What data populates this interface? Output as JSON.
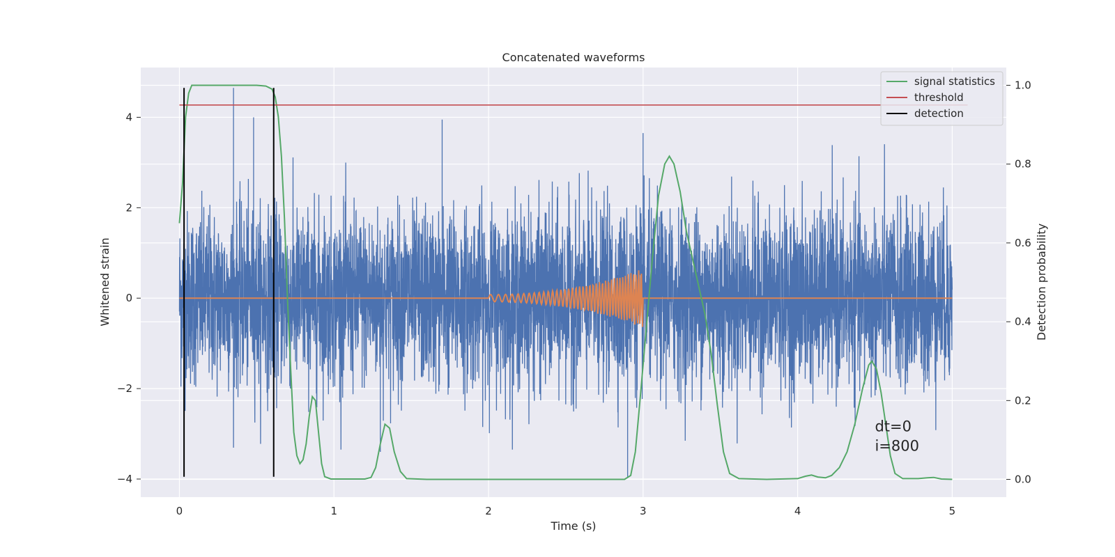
{
  "chart_data": {
    "type": "line",
    "title": "Concatenated waveforms",
    "xlabel": "Time (s)",
    "ylabel": "Whitened strain",
    "y2label": "Detection probability",
    "xlim": [
      -0.25,
      5.35
    ],
    "ylim": [
      -4.4,
      5.1
    ],
    "y2lim": [
      -0.045,
      1.045
    ],
    "xticks": [
      0,
      1,
      2,
      3,
      4,
      5
    ],
    "yticks": [
      -4,
      -2,
      0,
      2,
      4
    ],
    "yticklabels": [
      "−4",
      "−2",
      "0",
      "2",
      "4"
    ],
    "y2ticks": [
      0.0,
      0.2,
      0.4,
      0.6,
      0.8,
      1.0
    ],
    "y2ticklabels": [
      "0.0",
      "0.2",
      "0.4",
      "0.6",
      "0.8",
      "1.0"
    ],
    "grid": true,
    "legend_position": "top-right",
    "legend": [
      "signal statistics",
      "threshold",
      "detection"
    ],
    "colors": {
      "strain": "#4c72b0",
      "template": "#dd8452",
      "signal_statistics": "#55a868",
      "threshold": "#c44e52",
      "detection": "#000000",
      "background": "#eaeaf2",
      "grid": "#ffffff"
    },
    "strain": {
      "x_range": [
        0,
        5
      ],
      "amplitude_range": [
        -3.95,
        4.65
      ],
      "peak_points": [
        {
          "x": 0.35,
          "y": 4.65
        },
        {
          "x": 0.48,
          "y": 4.0
        },
        {
          "x": 1.7,
          "y": 3.95
        },
        {
          "x": 3.0,
          "y": 3.65
        },
        {
          "x": 2.9,
          "y": -3.95
        },
        {
          "x": 1.3,
          "y": -3.4
        }
      ]
    },
    "template": {
      "x_start": 2.0,
      "x_end": 3.0,
      "max_amplitude": 0.65
    },
    "series": [
      {
        "name": "signal statistics",
        "axis": "right",
        "points": [
          [
            0.0,
            0.65
          ],
          [
            0.02,
            0.75
          ],
          [
            0.04,
            0.92
          ],
          [
            0.06,
            0.98
          ],
          [
            0.08,
            1.0
          ],
          [
            0.1,
            1.0
          ],
          [
            0.3,
            1.0
          ],
          [
            0.5,
            1.0
          ],
          [
            0.56,
            0.998
          ],
          [
            0.6,
            0.99
          ],
          [
            0.62,
            0.97
          ],
          [
            0.64,
            0.92
          ],
          [
            0.66,
            0.82
          ],
          [
            0.68,
            0.66
          ],
          [
            0.7,
            0.45
          ],
          [
            0.72,
            0.28
          ],
          [
            0.74,
            0.12
          ],
          [
            0.76,
            0.06
          ],
          [
            0.78,
            0.04
          ],
          [
            0.8,
            0.05
          ],
          [
            0.82,
            0.09
          ],
          [
            0.84,
            0.16
          ],
          [
            0.86,
            0.21
          ],
          [
            0.88,
            0.2
          ],
          [
            0.9,
            0.12
          ],
          [
            0.92,
            0.04
          ],
          [
            0.94,
            0.007
          ],
          [
            0.98,
            0.001
          ],
          [
            1.2,
            0.001
          ],
          [
            1.24,
            0.005
          ],
          [
            1.27,
            0.03
          ],
          [
            1.3,
            0.09
          ],
          [
            1.33,
            0.14
          ],
          [
            1.36,
            0.13
          ],
          [
            1.39,
            0.07
          ],
          [
            1.43,
            0.02
          ],
          [
            1.47,
            0.002
          ],
          [
            1.6,
            0.0
          ],
          [
            2.0,
            0.0
          ],
          [
            2.5,
            0.0
          ],
          [
            2.88,
            0.0
          ],
          [
            2.92,
            0.01
          ],
          [
            2.95,
            0.07
          ],
          [
            2.98,
            0.2
          ],
          [
            3.02,
            0.38
          ],
          [
            3.06,
            0.56
          ],
          [
            3.1,
            0.72
          ],
          [
            3.14,
            0.8
          ],
          [
            3.17,
            0.82
          ],
          [
            3.2,
            0.8
          ],
          [
            3.24,
            0.73
          ],
          [
            3.28,
            0.63
          ],
          [
            3.32,
            0.56
          ],
          [
            3.36,
            0.49
          ],
          [
            3.4,
            0.42
          ],
          [
            3.44,
            0.32
          ],
          [
            3.48,
            0.19
          ],
          [
            3.52,
            0.07
          ],
          [
            3.56,
            0.015
          ],
          [
            3.62,
            0.002
          ],
          [
            3.8,
            0.0
          ],
          [
            4.0,
            0.002
          ],
          [
            4.05,
            0.008
          ],
          [
            4.09,
            0.011
          ],
          [
            4.13,
            0.006
          ],
          [
            4.18,
            0.004
          ],
          [
            4.22,
            0.01
          ],
          [
            4.27,
            0.03
          ],
          [
            4.32,
            0.07
          ],
          [
            4.37,
            0.14
          ],
          [
            4.42,
            0.23
          ],
          [
            4.46,
            0.29
          ],
          [
            4.48,
            0.3
          ],
          [
            4.51,
            0.28
          ],
          [
            4.54,
            0.22
          ],
          [
            4.57,
            0.14
          ],
          [
            4.6,
            0.06
          ],
          [
            4.63,
            0.015
          ],
          [
            4.68,
            0.002
          ],
          [
            4.78,
            0.002
          ],
          [
            4.84,
            0.004
          ],
          [
            4.88,
            0.005
          ],
          [
            4.93,
            0.001
          ],
          [
            5.0,
            0.0
          ]
        ]
      },
      {
        "name": "threshold",
        "axis": "right",
        "y": 0.95,
        "x_range": [
          0,
          5.1
        ]
      },
      {
        "name": "detection",
        "axis": "left",
        "x": [
          0.03,
          0.61
        ],
        "y_range": [
          -3.95,
          4.65
        ]
      }
    ],
    "annotations": [
      "dt=0",
      "i=800"
    ],
    "annotation_position": {
      "x": 4.5,
      "y": -3.3
    }
  }
}
